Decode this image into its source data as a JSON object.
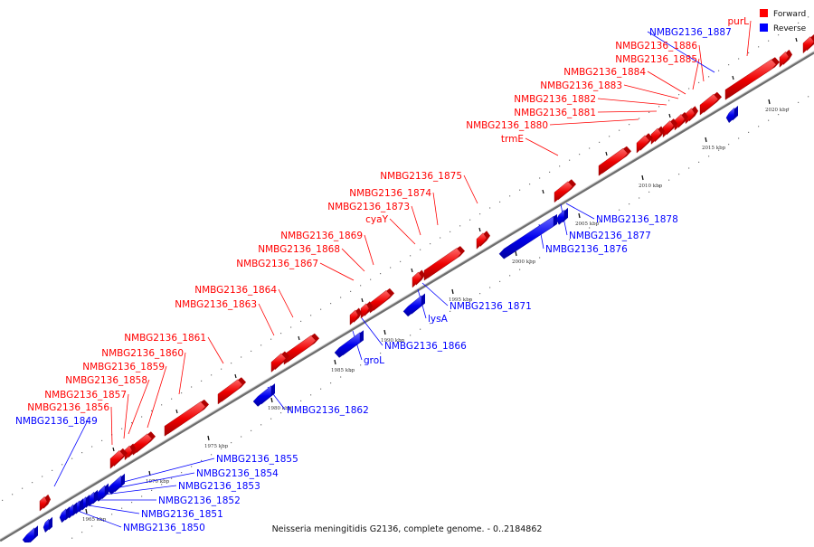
{
  "caption": "Neisseria meningitidis G2136, complete genome. - 0..2184862",
  "legend": [
    {
      "label": "Forward",
      "color": "#ff0000"
    },
    {
      "label": "Reverse",
      "color": "#0000ff"
    }
  ],
  "colors": {
    "forward": "#ff0000",
    "reverse": "#0000ff",
    "backbone": "#888888"
  },
  "axis": {
    "unit": "kbp",
    "ticks": [
      "1965 kbp",
      "1970 kbp",
      "1975 kbp",
      "1980 kbp",
      "1985 kbp",
      "1990 kbp",
      "1995 kbp",
      "2000 kbp",
      "2005 kbp",
      "2010 kbp",
      "2015 kbp",
      "2020 kbp"
    ]
  },
  "forward_labels": [
    "purL",
    "NMBG2136_1886",
    "NMBG2136_1885",
    "NMBG2136_1884",
    "NMBG2136_1883",
    "NMBG2136_1882",
    "NMBG2136_1881",
    "NMBG2136_1880",
    "trmE",
    "NMBG2136_1875",
    "NMBG2136_1874",
    "NMBG2136_1873",
    "cyaY",
    "NMBG2136_1869",
    "NMBG2136_1868",
    "NMBG2136_1867",
    "NMBG2136_1864",
    "NMBG2136_1863",
    "NMBG2136_1861",
    "NMBG2136_1860",
    "NMBG2136_1859",
    "NMBG2136_1858",
    "NMBG2136_1857",
    "NMBG2136_1856"
  ],
  "reverse_labels": [
    "NMBG2136_1887",
    "NMBG2136_1878",
    "NMBG2136_1877",
    "NMBG2136_1876",
    "NMBG2136_1871",
    "lysA",
    "NMBG2136_1866",
    "groL",
    "NMBG2136_1862",
    "NMBG2136_1849",
    "NMBG2136_1855",
    "NMBG2136_1854",
    "NMBG2136_1853",
    "NMBG2136_1852",
    "NMBG2136_1851",
    "NMBG2136_1850"
  ]
}
